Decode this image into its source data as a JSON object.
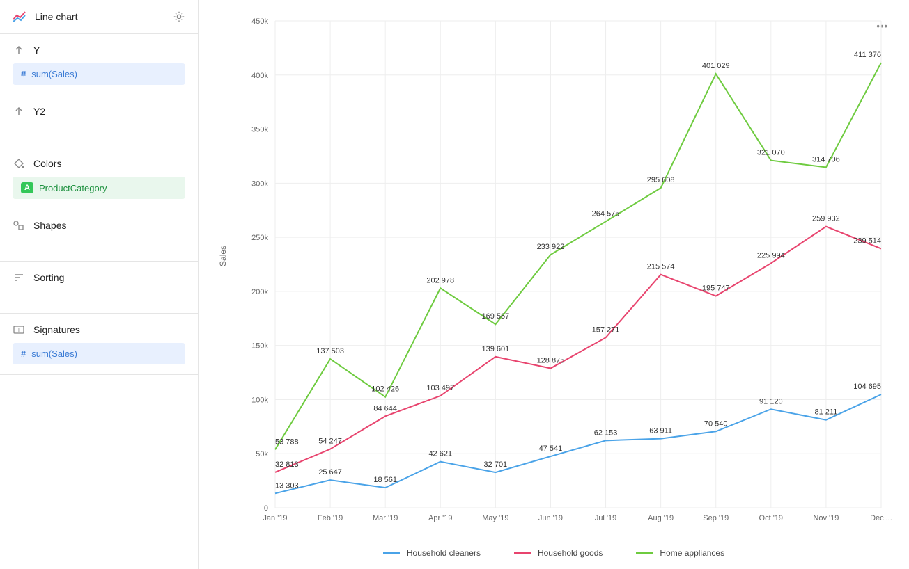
{
  "sidebar": {
    "chart_type_label": "Line chart",
    "panels": {
      "y": {
        "title": "Y",
        "pill": "sum(Sales)"
      },
      "y2": {
        "title": "Y2"
      },
      "colors": {
        "title": "Colors",
        "pill": "ProductCategory"
      },
      "shapes": {
        "title": "Shapes"
      },
      "sorting": {
        "title": "Sorting"
      },
      "signatures": {
        "title": "Signatures",
        "pill": "sum(Sales)"
      }
    }
  },
  "chart": {
    "type": "line",
    "y_axis_label": "Sales",
    "ylim": [
      0,
      450000
    ],
    "ytick_step": 50000,
    "ytick_labels": [
      "0",
      "50k",
      "100k",
      "150k",
      "200k",
      "250k",
      "300k",
      "350k",
      "400k",
      "450k"
    ],
    "x_categories": [
      "Jan '19",
      "Feb '19",
      "Mar '19",
      "Apr '19",
      "May '19",
      "Jun '19",
      "Jul '19",
      "Aug '19",
      "Sep '19",
      "Oct '19",
      "Nov '19",
      "Dec ..."
    ],
    "background_color": "#ffffff",
    "grid_color": "#eeeeee",
    "line_width": 2,
    "series": [
      {
        "name": "Household cleaners",
        "color": "#4aa3e8",
        "values": [
          13303,
          25647,
          18561,
          42621,
          32701,
          47541,
          62153,
          63911,
          70540,
          91120,
          81211,
          104695
        ],
        "labels": [
          "13 303",
          "25 647",
          "18 561",
          "42 621",
          "32 701",
          "47 541",
          "62 153",
          "63 911",
          "70 540",
          "91 120",
          "81 211",
          "104 695"
        ]
      },
      {
        "name": "Household goods",
        "color": "#e8446e",
        "values": [
          32813,
          54247,
          84644,
          103497,
          139601,
          128875,
          157271,
          215574,
          195747,
          225994,
          259932,
          239514
        ],
        "labels": [
          "32 813",
          "54 247",
          "84 644",
          "103 497",
          "139 601",
          "128 875",
          "157 271",
          "215 574",
          "195 747",
          "225 994",
          "259 932",
          "239 514"
        ]
      },
      {
        "name": "Home appliances",
        "color": "#6ecb3f",
        "values": [
          53788,
          137503,
          102426,
          202978,
          169567,
          233922,
          264575,
          295608,
          401029,
          321070,
          314706,
          411376
        ],
        "labels": [
          "53 788",
          "137 503",
          "102 426",
          "202 978",
          "169 567",
          "233 922",
          "264 575",
          "295 608",
          "401 029",
          "321 070",
          "314 706",
          "411 376"
        ]
      }
    ]
  }
}
